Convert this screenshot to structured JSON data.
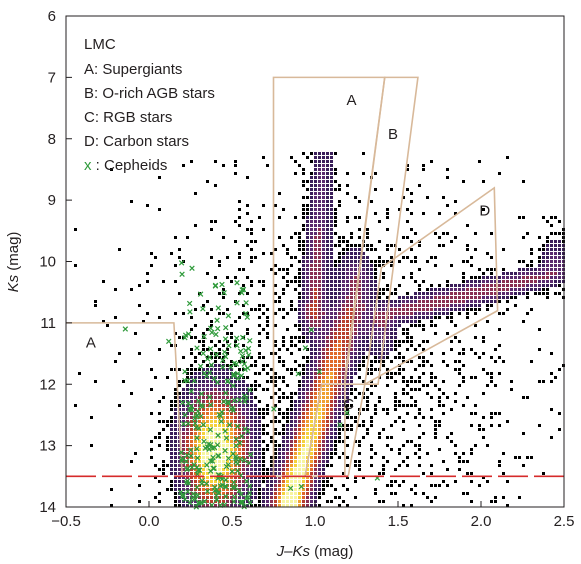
{
  "chart_data": {
    "type": "scatter",
    "title": "",
    "xlabel": {
      "var": "J–Ks",
      "unit": " (mag)"
    },
    "ylabel": {
      "var": "Ks",
      "unit": " (mag)"
    },
    "xlim": [
      -0.5,
      2.5
    ],
    "ylim": [
      14,
      6
    ],
    "y_inverted": true,
    "grid": false,
    "x_ticks": [
      -0.5,
      0.0,
      0.5,
      1.0,
      1.5,
      2.0,
      2.5
    ],
    "x_tick_labels": [
      "−0.5",
      "0.0",
      "0.5",
      "1.0",
      "1.5",
      "2.0",
      "2.5"
    ],
    "y_ticks": [
      6,
      7,
      8,
      9,
      10,
      11,
      12,
      13,
      14
    ],
    "y_tick_labels": [
      "6",
      "7",
      "8",
      "9",
      "10",
      "11",
      "12",
      "13",
      "14"
    ],
    "legend": {
      "placement": "top-left",
      "title": "LMC",
      "entries": [
        {
          "text": "A: Supergiants"
        },
        {
          "text": "B: O-rich AGB stars"
        },
        {
          "text": "C: RGB stars"
        },
        {
          "text": "D: Carbon stars"
        },
        {
          "marker": "x",
          "text": " : Cepheids",
          "color": "#2e9a3a"
        }
      ]
    },
    "density": {
      "description": "Hess diagram of LMC stars; colour encodes star density",
      "colormap": [
        "#f7f5a0",
        "#f5d23a",
        "#f0a030",
        "#e06a2a",
        "#b8402e",
        "#8a2f52",
        "#5a2a6e",
        "#3b1e5a"
      ],
      "sparse_color": "#000000",
      "components": [
        {
          "name": "main sequence",
          "x_center": 0.4,
          "y_center": 13.1,
          "x_spread": 0.18,
          "y_spread": 0.9
        },
        {
          "name": "red giant branch",
          "x_start": 0.85,
          "y_start": 13.9,
          "x_end": 1.25,
          "y_end": 10.5,
          "width": 0.1
        },
        {
          "name": "giant plume",
          "x_start": 1.0,
          "y_start": 10.8,
          "x_end": 1.05,
          "y_end": 8.3,
          "width": 0.07
        },
        {
          "name": "carbon star tail",
          "x_start": 1.4,
          "y_start": 10.9,
          "x_end": 2.45,
          "y_end": 10.2,
          "width": 0.09
        }
      ]
    },
    "regions": [
      {
        "label": "A",
        "color": "#d8b99a",
        "points": [
          [
            -0.5,
            11
          ],
          [
            0.15,
            11
          ],
          [
            0.2,
            13.5
          ]
        ],
        "label_at": [
          -0.38,
          11.4
        ]
      },
      {
        "label": "A",
        "color": "#d8b99a",
        "points": [
          [
            0.75,
            13.5
          ],
          [
            0.75,
            7.0
          ],
          [
            1.42,
            7.0
          ],
          [
            1.18,
            11.9
          ],
          [
            1.18,
            13.5
          ]
        ],
        "label_at": [
          1.19,
          7.45
        ]
      },
      {
        "label": "B",
        "color": "#d8b99a",
        "points": [
          [
            1.42,
            7.0
          ],
          [
            1.62,
            7.0
          ],
          [
            1.38,
            12.0
          ],
          [
            1.18,
            12.0
          ]
        ],
        "label_at": [
          1.44,
          8.0
        ]
      },
      {
        "label": "C",
        "color": "#d8b99a",
        "points": [
          [
            0.94,
            13.5
          ],
          [
            1.04,
            12.0
          ],
          [
            1.3,
            12.0
          ],
          [
            1.2,
            13.5
          ]
        ],
        "label_at": [
          1.17,
          12.4
        ]
      },
      {
        "label": "D",
        "color": "#d8b99a",
        "points": [
          [
            1.3,
            12.0
          ],
          [
            1.4,
            10.1
          ],
          [
            2.08,
            8.8
          ],
          [
            2.1,
            10.8
          ]
        ],
        "label_at": [
          1.99,
          9.25
        ]
      }
    ],
    "reference_line": {
      "y": 13.5,
      "style": "dashed",
      "color": "#d62b2b"
    },
    "cepheids": {
      "marker": "x",
      "color": "#2e9a3a",
      "x_center": 0.4,
      "y_top": 9.3,
      "y_bottom": 14.0
    }
  }
}
